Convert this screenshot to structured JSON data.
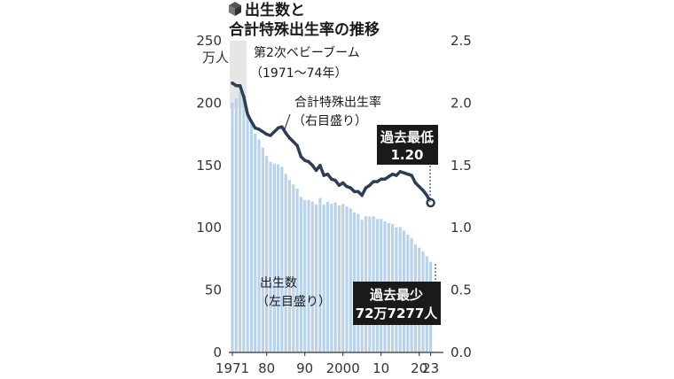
{
  "chart_data": {
    "type": "bar+line",
    "title_line1": "出生数と",
    "title_line2": "合計特殊出生率の推移",
    "title_icon": "cube-icon",
    "left_axis": {
      "unit_label": "万人",
      "ticks": [
        0,
        50,
        100,
        150,
        200,
        250
      ],
      "ylim": [
        0,
        250
      ]
    },
    "right_axis": {
      "ticks": [
        "0.0",
        "0.5",
        "1.0",
        "1.5",
        "2.0",
        "2.5"
      ],
      "ylim": [
        0,
        2.5
      ]
    },
    "x_tick_labels": [
      {
        "year": 1971,
        "label": "1971"
      },
      {
        "year": 1980,
        "label": "80"
      },
      {
        "year": 1990,
        "label": "90"
      },
      {
        "year": 2000,
        "label": "2000"
      },
      {
        "year": 2010,
        "label": "10"
      },
      {
        "year": 2020,
        "label": "20"
      },
      {
        "year": 2023,
        "label": "23"
      }
    ],
    "x": [
      1971,
      1972,
      1973,
      1974,
      1975,
      1976,
      1977,
      1978,
      1979,
      1980,
      1981,
      1982,
      1983,
      1984,
      1985,
      1986,
      1987,
      1988,
      1989,
      1990,
      1991,
      1992,
      1993,
      1994,
      1995,
      1996,
      1997,
      1998,
      1999,
      2000,
      2001,
      2002,
      2003,
      2004,
      2005,
      2006,
      2007,
      2008,
      2009,
      2010,
      2011,
      2012,
      2013,
      2014,
      2015,
      2016,
      2017,
      2018,
      2019,
      2020,
      2021,
      2022,
      2023
    ],
    "series": [
      {
        "name": "出生数",
        "axis": "left",
        "kind": "bar",
        "color": "#b9d3ea",
        "values": [
          200.0,
          203.9,
          209.2,
          203.0,
          190.1,
          183.3,
          175.5,
          170.9,
          164.3,
          157.7,
          152.9,
          151.5,
          150.9,
          149.0,
          143.2,
          138.3,
          134.7,
          131.4,
          124.7,
          122.2,
          122.3,
          120.9,
          118.8,
          123.8,
          118.7,
          120.7,
          119.2,
          120.3,
          117.8,
          119.1,
          117.1,
          115.4,
          112.4,
          111.1,
          106.3,
          109.3,
          109.0,
          109.1,
          107.0,
          107.1,
          105.1,
          103.7,
          103.0,
          100.4,
          100.6,
          97.7,
          94.6,
          91.8,
          86.5,
          84.1,
          81.2,
          77.1,
          72.7
        ]
      },
      {
        "name": "合計特殊出生率",
        "axis": "right",
        "kind": "line",
        "color": "#2c3e55",
        "values": [
          2.16,
          2.14,
          2.14,
          2.05,
          1.91,
          1.85,
          1.8,
          1.79,
          1.77,
          1.75,
          1.74,
          1.77,
          1.8,
          1.81,
          1.76,
          1.72,
          1.69,
          1.66,
          1.57,
          1.54,
          1.53,
          1.5,
          1.46,
          1.5,
          1.42,
          1.43,
          1.39,
          1.38,
          1.34,
          1.36,
          1.33,
          1.32,
          1.29,
          1.29,
          1.26,
          1.32,
          1.34,
          1.37,
          1.37,
          1.39,
          1.39,
          1.41,
          1.43,
          1.42,
          1.45,
          1.44,
          1.43,
          1.42,
          1.36,
          1.33,
          1.3,
          1.26,
          1.2
        ]
      }
    ],
    "baby_boom": {
      "label": "第2次ベビーブーム",
      "range_label": "（1971〜74年）",
      "from": 1971,
      "to": 1974
    },
    "annotations": {
      "line_label_1": "合計特殊出生率",
      "line_label_2": "（右目盛り）",
      "bar_label_1": "出生数",
      "bar_label_2": "（左目盛り）",
      "rate_box_1": "過去最低",
      "rate_box_2": "1.20",
      "births_box_1": "過去最少",
      "births_box_2": "72万7277人"
    },
    "grid": false
  }
}
